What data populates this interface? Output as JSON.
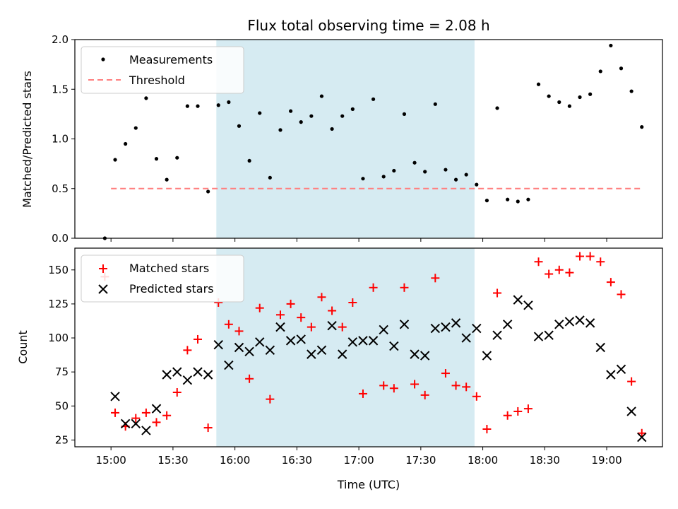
{
  "chart_data": [
    {
      "type": "scatter",
      "title": "Flux total observing time = 2.08 h",
      "xlabel": "",
      "ylabel": "Matched/Predicted stars",
      "ylim": [
        0,
        2.0
      ],
      "yticks": [
        "0.0",
        "0.5",
        "1.0",
        "1.5",
        "2.0"
      ],
      "xticks": [
        "15:00",
        "15:30",
        "16:00",
        "16:30",
        "17:00",
        "17:30",
        "18:00",
        "18:30",
        "19:00"
      ],
      "shaded_range": [
        "15:51",
        "17:56"
      ],
      "shaded_color": "#add8e6",
      "legend_position": "top-left",
      "series": [
        {
          "name": "Measurements",
          "kind": "points",
          "color": "#000000",
          "x": [
            "14:57",
            "15:02",
            "15:07",
            "15:12",
            "15:17",
            "15:22",
            "15:27",
            "15:32",
            "15:37",
            "15:42",
            "15:47",
            "15:52",
            "15:57",
            "16:02",
            "16:07",
            "16:12",
            "16:17",
            "16:22",
            "16:27",
            "16:32",
            "16:37",
            "16:42",
            "16:47",
            "16:52",
            "16:57",
            "17:02",
            "17:07",
            "17:12",
            "17:17",
            "17:22",
            "17:27",
            "17:32",
            "17:37",
            "17:42",
            "17:47",
            "17:52",
            "17:57",
            "18:02",
            "18:07",
            "18:12",
            "18:17",
            "18:22",
            "18:27",
            "18:32",
            "18:37",
            "18:42",
            "18:47",
            "18:52",
            "18:57",
            "19:02",
            "19:07",
            "19:12",
            "19:17"
          ],
          "y": [
            0.0,
            0.79,
            0.95,
            1.11,
            1.41,
            0.8,
            0.59,
            0.81,
            1.33,
            1.33,
            0.47,
            1.34,
            1.37,
            1.13,
            0.78,
            1.26,
            0.61,
            1.09,
            1.28,
            1.17,
            1.23,
            1.43,
            1.1,
            1.23,
            1.3,
            0.6,
            1.4,
            0.62,
            0.68,
            1.25,
            0.76,
            0.67,
            1.35,
            0.69,
            0.59,
            0.64,
            0.54,
            0.38,
            1.31,
            0.39,
            0.37,
            0.39,
            1.55,
            1.43,
            1.37,
            1.33,
            1.42,
            1.45,
            1.68,
            1.94,
            1.71,
            1.48,
            1.12
          ]
        },
        {
          "name": "Threshold",
          "kind": "dashed-line",
          "color": "#ff7f7f",
          "x": [
            "15:00",
            "19:17"
          ],
          "y": [
            0.5,
            0.5
          ]
        }
      ]
    },
    {
      "type": "scatter",
      "title": "",
      "xlabel": "Time (UTC)",
      "ylabel": "Count",
      "ylim": [
        20,
        166
      ],
      "yticks": [
        "25",
        "50",
        "75",
        "100",
        "125",
        "150"
      ],
      "xticks": [
        "15:00",
        "15:30",
        "16:00",
        "16:30",
        "17:00",
        "17:30",
        "18:00",
        "18:30",
        "19:00"
      ],
      "shaded_range": [
        "15:51",
        "17:56"
      ],
      "shaded_color": "#add8e6",
      "legend_position": "top-left",
      "series": [
        {
          "name": "Matched stars",
          "marker": "plus",
          "color": "#ff0000",
          "x": [
            "14:57",
            "15:02",
            "15:07",
            "15:12",
            "15:17",
            "15:22",
            "15:27",
            "15:32",
            "15:37",
            "15:42",
            "15:47",
            "15:52",
            "15:57",
            "16:02",
            "16:07",
            "16:12",
            "16:17",
            "16:22",
            "16:27",
            "16:32",
            "16:37",
            "16:42",
            "16:47",
            "16:52",
            "16:57",
            "17:02",
            "17:07",
            "17:12",
            "17:17",
            "17:22",
            "17:27",
            "17:32",
            "17:37",
            "17:42",
            "17:47",
            "17:52",
            "17:57",
            "18:02",
            "18:07",
            "18:12",
            "18:17",
            "18:22",
            "18:27",
            "18:32",
            "18:37",
            "18:42",
            "18:47",
            "18:52",
            "18:57",
            "19:02",
            "19:07",
            "19:12",
            "19:17"
          ],
          "y": [
            145,
            45,
            35,
            41,
            45,
            38,
            43,
            60,
            91,
            99,
            34,
            126,
            110,
            105,
            70,
            122,
            55,
            117,
            125,
            115,
            108,
            130,
            120,
            108,
            126,
            59,
            137,
            65,
            63,
            137,
            66,
            58,
            144,
            74,
            65,
            64,
            57,
            33,
            133,
            43,
            46,
            48,
            156,
            147,
            150,
            148,
            160,
            160,
            156,
            141,
            132,
            68,
            30
          ]
        },
        {
          "name": "Predicted stars",
          "marker": "x",
          "color": "#000000",
          "x": [
            "15:02",
            "15:07",
            "15:12",
            "15:17",
            "15:22",
            "15:27",
            "15:32",
            "15:37",
            "15:42",
            "15:47",
            "15:52",
            "15:57",
            "16:02",
            "16:07",
            "16:12",
            "16:17",
            "16:22",
            "16:27",
            "16:32",
            "16:37",
            "16:42",
            "16:47",
            "16:52",
            "16:57",
            "17:02",
            "17:07",
            "17:12",
            "17:17",
            "17:22",
            "17:27",
            "17:32",
            "17:37",
            "17:42",
            "17:47",
            "17:52",
            "17:57",
            "18:02",
            "18:07",
            "18:12",
            "18:17",
            "18:22",
            "18:27",
            "18:32",
            "18:37",
            "18:42",
            "18:47",
            "18:52",
            "18:57",
            "19:02",
            "19:07",
            "19:12",
            "19:17"
          ],
          "y": [
            57,
            37,
            37,
            32,
            48,
            73,
            75,
            69,
            75,
            73,
            95,
            80,
            93,
            90,
            97,
            91,
            108,
            98,
            99,
            88,
            91,
            109,
            88,
            97,
            98,
            98,
            106,
            94,
            110,
            88,
            87,
            107,
            108,
            111,
            100,
            107,
            87,
            102,
            110,
            128,
            124,
            101,
            102,
            110,
            112,
            113,
            111,
            93,
            73,
            77,
            46,
            27
          ]
        }
      ]
    }
  ]
}
